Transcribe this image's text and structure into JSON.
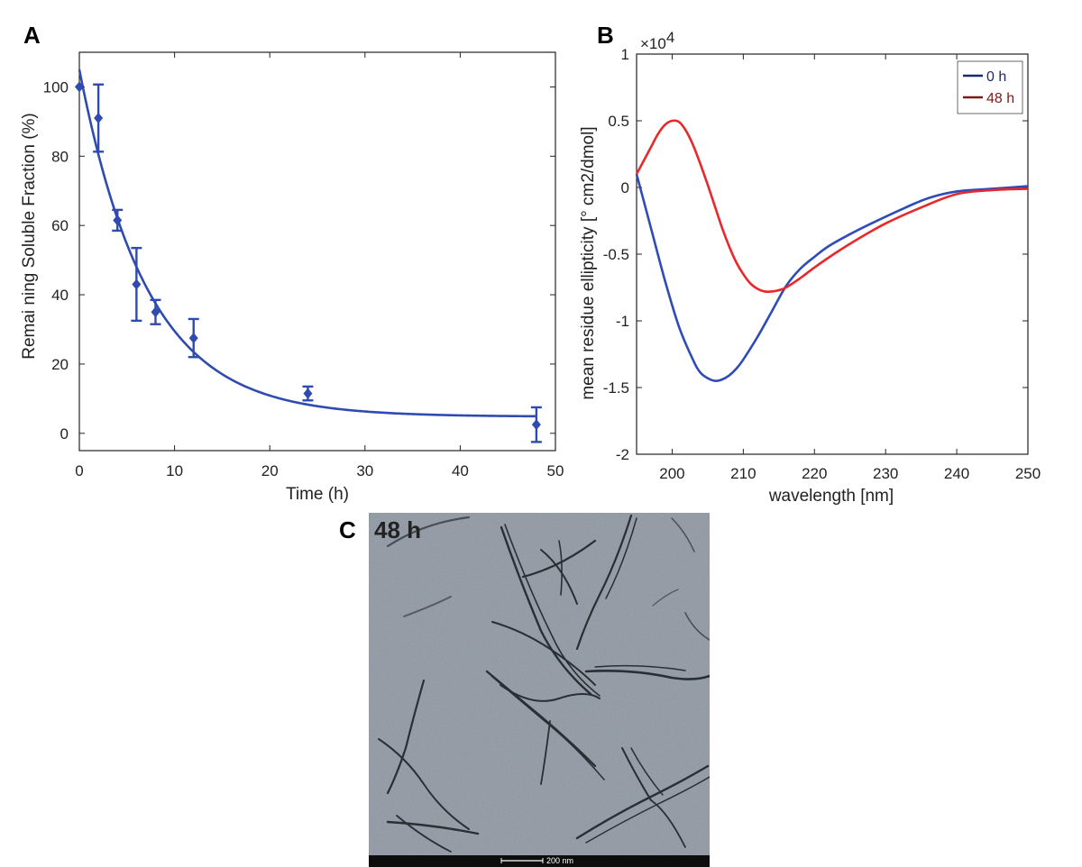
{
  "chart_data": [
    {
      "panel": "A",
      "type": "scatter",
      "xlabel": "Time (h)",
      "ylabel": "Remai ning Soluble Fraction (%)",
      "xlim": [
        0,
        50
      ],
      "ylim": [
        -5,
        110
      ],
      "xticks": [
        0,
        10,
        20,
        30,
        40,
        50
      ],
      "yticks": [
        0,
        20,
        40,
        60,
        80,
        100
      ],
      "points": [
        {
          "x": 0,
          "y": 100,
          "err": 0
        },
        {
          "x": 2,
          "y": 91,
          "err": 9.7
        },
        {
          "x": 4,
          "y": 61.5,
          "err": 3
        },
        {
          "x": 6,
          "y": 43,
          "err": 10.5
        },
        {
          "x": 8,
          "y": 35,
          "err": 3.5
        },
        {
          "x": 12,
          "y": 27.5,
          "err": 5.5
        },
        {
          "x": 24,
          "y": 11.5,
          "err": 2
        },
        {
          "x": 48,
          "y": 2.5,
          "err": 5
        }
      ],
      "fit": {
        "model": "exponential decay",
        "y0": 105,
        "amplitude": 100,
        "rate": 0.14,
        "plateau": 4.8
      },
      "color": "#2f4bb0"
    },
    {
      "panel": "B",
      "type": "line",
      "xlabel": "wavelength [nm]",
      "ylabel": "mean residue ellipticity [° cm2/dmol]",
      "exponent": "×10",
      "exponent_power": "4",
      "xlim": [
        195,
        250
      ],
      "ylim": [
        -2,
        1
      ],
      "xticks": [
        200,
        210,
        220,
        230,
        240,
        250
      ],
      "yticks": [
        1,
        0.5,
        0,
        -0.5,
        -1,
        -1.5,
        -2
      ],
      "ytick_labels": [
        "1",
        "0.5",
        "0",
        "-0.5",
        "-1",
        "-1.5",
        "-2"
      ],
      "legend_position": "top-right",
      "series": [
        {
          "name": "0 h",
          "color": "#2f4bb8",
          "legend_color": "#1a2a6c",
          "x": [
            195,
            197,
            199,
            201,
            203,
            204,
            205,
            206,
            207,
            208,
            209,
            210,
            212,
            214,
            216,
            218,
            220,
            222,
            225,
            228,
            232,
            236,
            240,
            245,
            250
          ],
          "y": [
            0.1,
            -0.3,
            -0.7,
            -1.05,
            -1.3,
            -1.39,
            -1.43,
            -1.45,
            -1.44,
            -1.41,
            -1.36,
            -1.29,
            -1.12,
            -0.93,
            -0.74,
            -0.61,
            -0.52,
            -0.44,
            -0.35,
            -0.27,
            -0.17,
            -0.08,
            -0.03,
            -0.01,
            0.01
          ]
        },
        {
          "name": "48 h",
          "color": "#e8282b",
          "legend_color": "#7a1c1c",
          "x": [
            195,
            197,
            198,
            199,
            200,
            201,
            202,
            203,
            204,
            205,
            206,
            207,
            208,
            209,
            210,
            211,
            212,
            213,
            214,
            215,
            216,
            218,
            220,
            223,
            226,
            230,
            235,
            240,
            245,
            250
          ],
          "y": [
            0.1,
            0.3,
            0.4,
            0.47,
            0.5,
            0.49,
            0.42,
            0.31,
            0.17,
            0.02,
            -0.14,
            -0.3,
            -0.44,
            -0.56,
            -0.65,
            -0.72,
            -0.76,
            -0.78,
            -0.78,
            -0.77,
            -0.75,
            -0.68,
            -0.6,
            -0.49,
            -0.39,
            -0.27,
            -0.15,
            -0.05,
            -0.02,
            -0.01
          ]
        }
      ]
    }
  ],
  "panel_labels": {
    "a": "A",
    "b": "B",
    "c": "C"
  },
  "tem": {
    "title": "48 h",
    "scale_bar_label": "200 nm"
  }
}
